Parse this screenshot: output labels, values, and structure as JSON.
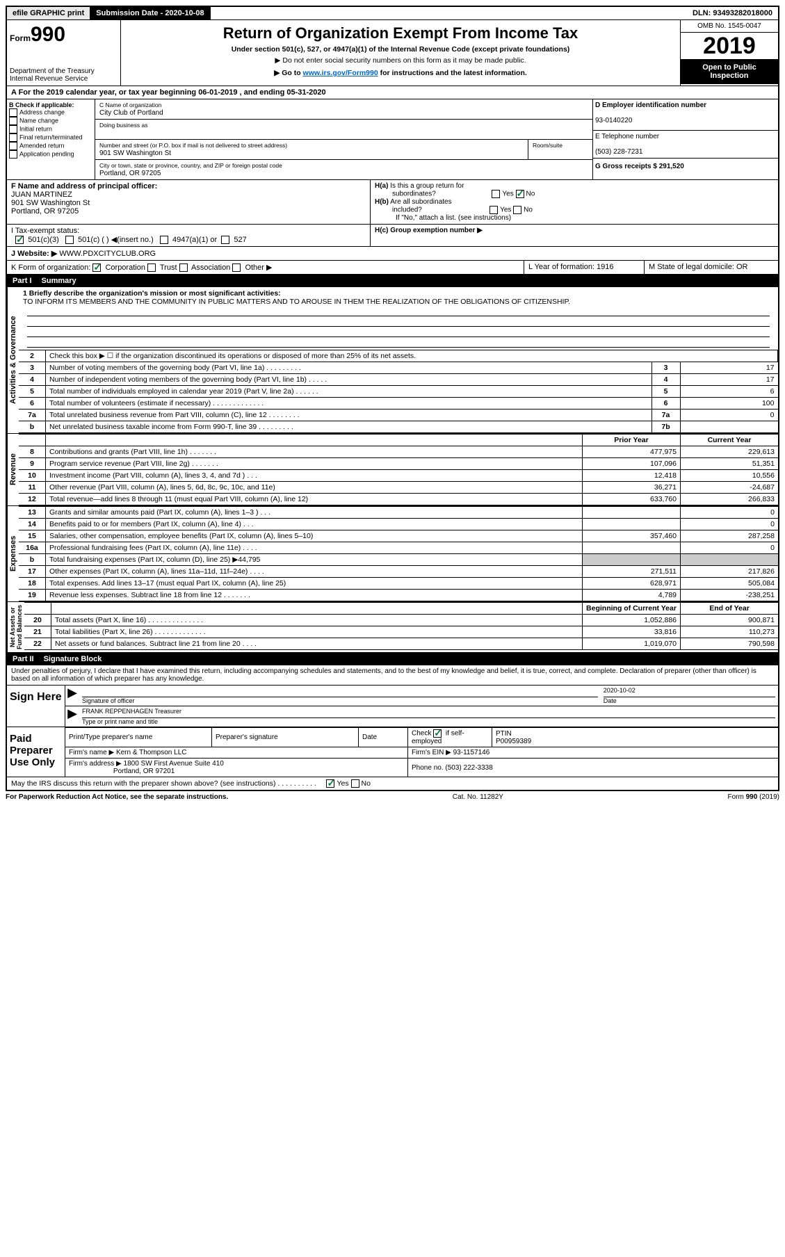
{
  "topbar": {
    "efile": "efile GRAPHIC print",
    "submission_label": "Submission Date - 2020-10-08",
    "dln": "DLN: 93493282018000"
  },
  "header": {
    "form_prefix": "Form",
    "form_number": "990",
    "dept": "Department of the Treasury\nInternal Revenue Service",
    "title": "Return of Organization Exempt From Income Tax",
    "sub1": "Under section 501(c), 527, or 4947(a)(1) of the Internal Revenue Code (except private foundations)",
    "sub2": "▶ Do not enter social security numbers on this form as it may be made public.",
    "sub3_pre": "▶ Go to ",
    "sub3_link": "www.irs.gov/Form990",
    "sub3_post": " for instructions and the latest information.",
    "omb": "OMB No. 1545-0047",
    "year": "2019",
    "open": "Open to Public Inspection"
  },
  "row_a": "A For the 2019 calendar year, or tax year beginning 06-01-2019    , and ending 05-31-2020",
  "box_b": {
    "label": "B Check if applicable:",
    "opts": [
      "Address change",
      "Name change",
      "Initial return",
      "Final return/terminated",
      "Amended return",
      "Application pending"
    ]
  },
  "box_c": {
    "name_label": "C Name of organization",
    "name": "City Club of Portland",
    "dba_label": "Doing business as",
    "addr_label": "Number and street (or P.O. box if mail is not delivered to street address)",
    "room_label": "Room/suite",
    "addr": "901 SW Washington St",
    "city_label": "City or town, state or province, country, and ZIP or foreign postal code",
    "city": "Portland, OR  97205"
  },
  "box_d": {
    "label": "D Employer identification number",
    "val": "93-0140220"
  },
  "box_e": {
    "label": "E Telephone number",
    "val": "(503) 228-7231"
  },
  "box_g": {
    "label": "G Gross receipts $ 291,520"
  },
  "box_f": {
    "label": "F  Name and address of principal officer:",
    "name": "JUAN MARTINEZ",
    "addr1": "901 SW Washington St",
    "addr2": "Portland, OR  97205"
  },
  "box_h": {
    "a": "H(a)  Is this a group return for subordinates?",
    "b": "H(b)  Are all subordinates included?",
    "note": "If \"No,\" attach a list. (see instructions)",
    "c": "H(c)  Group exemption number ▶"
  },
  "row_i": {
    "label": "I   Tax-exempt status:",
    "o1": "501(c)(3)",
    "o2": "501(c) (   ) ◀(insert no.)",
    "o3": "4947(a)(1) or",
    "o4": "527"
  },
  "row_j": {
    "label": "J    Website: ▶",
    "val": " WWW.PDXCITYCLUB.ORG"
  },
  "row_k": {
    "label": "K Form of organization:",
    "o1": "Corporation",
    "o2": "Trust",
    "o3": "Association",
    "o4": "Other ▶"
  },
  "row_l": "L Year of formation: 1916",
  "row_m": "M State of legal domicile: OR",
  "part1": {
    "num": "Part I",
    "title": "Summary"
  },
  "mission": {
    "lead": "1  Briefly describe the organization's mission or most significant activities:",
    "text": "TO INFORM ITS MEMBERS AND THE COMMUNITY IN PUBLIC MATTERS AND TO AROUSE IN THEM THE REALIZATION OF THE OBLIGATIONS OF CITIZENSHIP."
  },
  "gov_rows": [
    {
      "n": "2",
      "d": "Check this box ▶ ☐  if the organization discontinued its operations or disposed of more than 25% of its net assets.",
      "b": "",
      "v": ""
    },
    {
      "n": "3",
      "d": "Number of voting members of the governing body (Part VI, line 1a)   .    .    .    .    .    .    .    .    .",
      "b": "3",
      "v": "17"
    },
    {
      "n": "4",
      "d": "Number of independent voting members of the governing body (Part VI, line 1b)  .    .    .    .    .",
      "b": "4",
      "v": "17"
    },
    {
      "n": "5",
      "d": "Total number of individuals employed in calendar year 2019 (Part V, line 2a)  .    .    .    .    .    .",
      "b": "5",
      "v": "6"
    },
    {
      "n": "6",
      "d": "Total number of volunteers (estimate if necessary)    .    .    .    .    .    .    .    .    .    .    .    .    .",
      "b": "6",
      "v": "100"
    },
    {
      "n": "7a",
      "d": "Total unrelated business revenue from Part VIII, column (C), line 12   .    .    .    .    .    .    .    .",
      "b": "7a",
      "v": "0"
    },
    {
      "n": "b",
      "d": "Net unrelated business taxable income from Form 990-T, line 39   .    .    .    .    .    .    .    .    .",
      "b": "7b",
      "v": ""
    }
  ],
  "rev_header": {
    "py": "Prior Year",
    "cy": "Current Year"
  },
  "rev_rows": [
    {
      "n": "8",
      "d": "Contributions and grants (Part VIII, line 1h)   .    .    .    .    .    .    .",
      "py": "477,975",
      "cy": "229,613"
    },
    {
      "n": "9",
      "d": "Program service revenue (Part VIII, line 2g)   .    .    .    .    .    .    .",
      "py": "107,096",
      "cy": "51,351"
    },
    {
      "n": "10",
      "d": "Investment income (Part VIII, column (A), lines 3, 4, and 7d )    .    .    .",
      "py": "12,418",
      "cy": "10,556"
    },
    {
      "n": "11",
      "d": "Other revenue (Part VIII, column (A), lines 5, 6d, 8c, 9c, 10c, and 11e)",
      "py": "36,271",
      "cy": "-24,687"
    },
    {
      "n": "12",
      "d": "Total revenue—add lines 8 through 11 (must equal Part VIII, column (A), line 12)",
      "py": "633,760",
      "cy": "266,833"
    }
  ],
  "exp_rows": [
    {
      "n": "13",
      "d": "Grants and similar amounts paid (Part IX, column (A), lines 1–3 )   .    .    .",
      "py": "",
      "cy": "0"
    },
    {
      "n": "14",
      "d": "Benefits paid to or for members (Part IX, column (A), line 4)   .    .    .",
      "py": "",
      "cy": "0"
    },
    {
      "n": "15",
      "d": "Salaries, other compensation, employee benefits (Part IX, column (A), lines 5–10)",
      "py": "357,460",
      "cy": "287,258"
    },
    {
      "n": "16a",
      "d": "Professional fundraising fees (Part IX, column (A), line 11e)    .    .    .    .",
      "py": "",
      "cy": "0"
    },
    {
      "n": "b",
      "d": "Total fundraising expenses (Part IX, column (D), line 25) ▶44,795",
      "py": "shaded",
      "cy": "shaded"
    },
    {
      "n": "17",
      "d": "Other expenses (Part IX, column (A), lines 11a–11d, 11f–24e)   .    .    .    .",
      "py": "271,511",
      "cy": "217,826"
    },
    {
      "n": "18",
      "d": "Total expenses. Add lines 13–17 (must equal Part IX, column (A), line 25)",
      "py": "628,971",
      "cy": "505,084"
    },
    {
      "n": "19",
      "d": "Revenue less expenses. Subtract line 18 from line 12  .    .    .    .    .    .    .",
      "py": "4,789",
      "cy": "-238,251"
    }
  ],
  "net_header": {
    "py": "Beginning of Current Year",
    "cy": "End of Year"
  },
  "net_rows": [
    {
      "n": "20",
      "d": "Total assets (Part X, line 16)  .    .    .    .    .    .    .    .    .    .    .    .    .    .",
      "py": "1,052,886",
      "cy": "900,871"
    },
    {
      "n": "21",
      "d": "Total liabilities (Part X, line 26)   .    .    .    .    .    .    .    .    .    .    .    .    .",
      "py": "33,816",
      "cy": "110,273"
    },
    {
      "n": "22",
      "d": "Net assets or fund balances. Subtract line 21 from line 20   .    .    .    .",
      "py": "1,019,070",
      "cy": "790,598"
    }
  ],
  "part2": {
    "num": "Part II",
    "title": "Signature Block"
  },
  "penalties": "Under penalties of perjury, I declare that I have examined this return, including accompanying schedules and statements, and to the best of my knowledge and belief, it is true, correct, and complete. Declaration of preparer (other than officer) is based on all information of which preparer has any knowledge.",
  "sign": {
    "here": "Sign Here",
    "sig_label": "Signature of officer",
    "date_label": "Date",
    "date": "2020-10-02",
    "name": "FRANK REPPENHAGEN Treasurer",
    "name_label": "Type or print name and title"
  },
  "paid": {
    "label": "Paid Preparer Use Only",
    "h1": "Print/Type preparer's name",
    "h2": "Preparer's signature",
    "h3": "Date",
    "h4_pre": "Check",
    "h4_post": "if self-employed",
    "h5": "PTIN",
    "ptin": "P00959389",
    "firm_label": "Firm's name    ▶",
    "firm": "Kern & Thompson LLC",
    "ein_label": "Firm's EIN ▶",
    "ein": "93-1157146",
    "addr_label": "Firm's address ▶",
    "addr1": "1800 SW First Avenue Suite 410",
    "addr2": "Portland, OR  97201",
    "phone_label": "Phone no.",
    "phone": "(503) 222-3338"
  },
  "discuss": "May the IRS discuss this return with the preparer shown above? (see instructions)    .    .    .    .    .    .    .    .    .    .",
  "footer": {
    "l": "For Paperwork Reduction Act Notice, see the separate instructions.",
    "c": "Cat. No. 11282Y",
    "r": "Form 990 (2019)"
  },
  "yn": {
    "yes": "Yes",
    "no": "No"
  }
}
